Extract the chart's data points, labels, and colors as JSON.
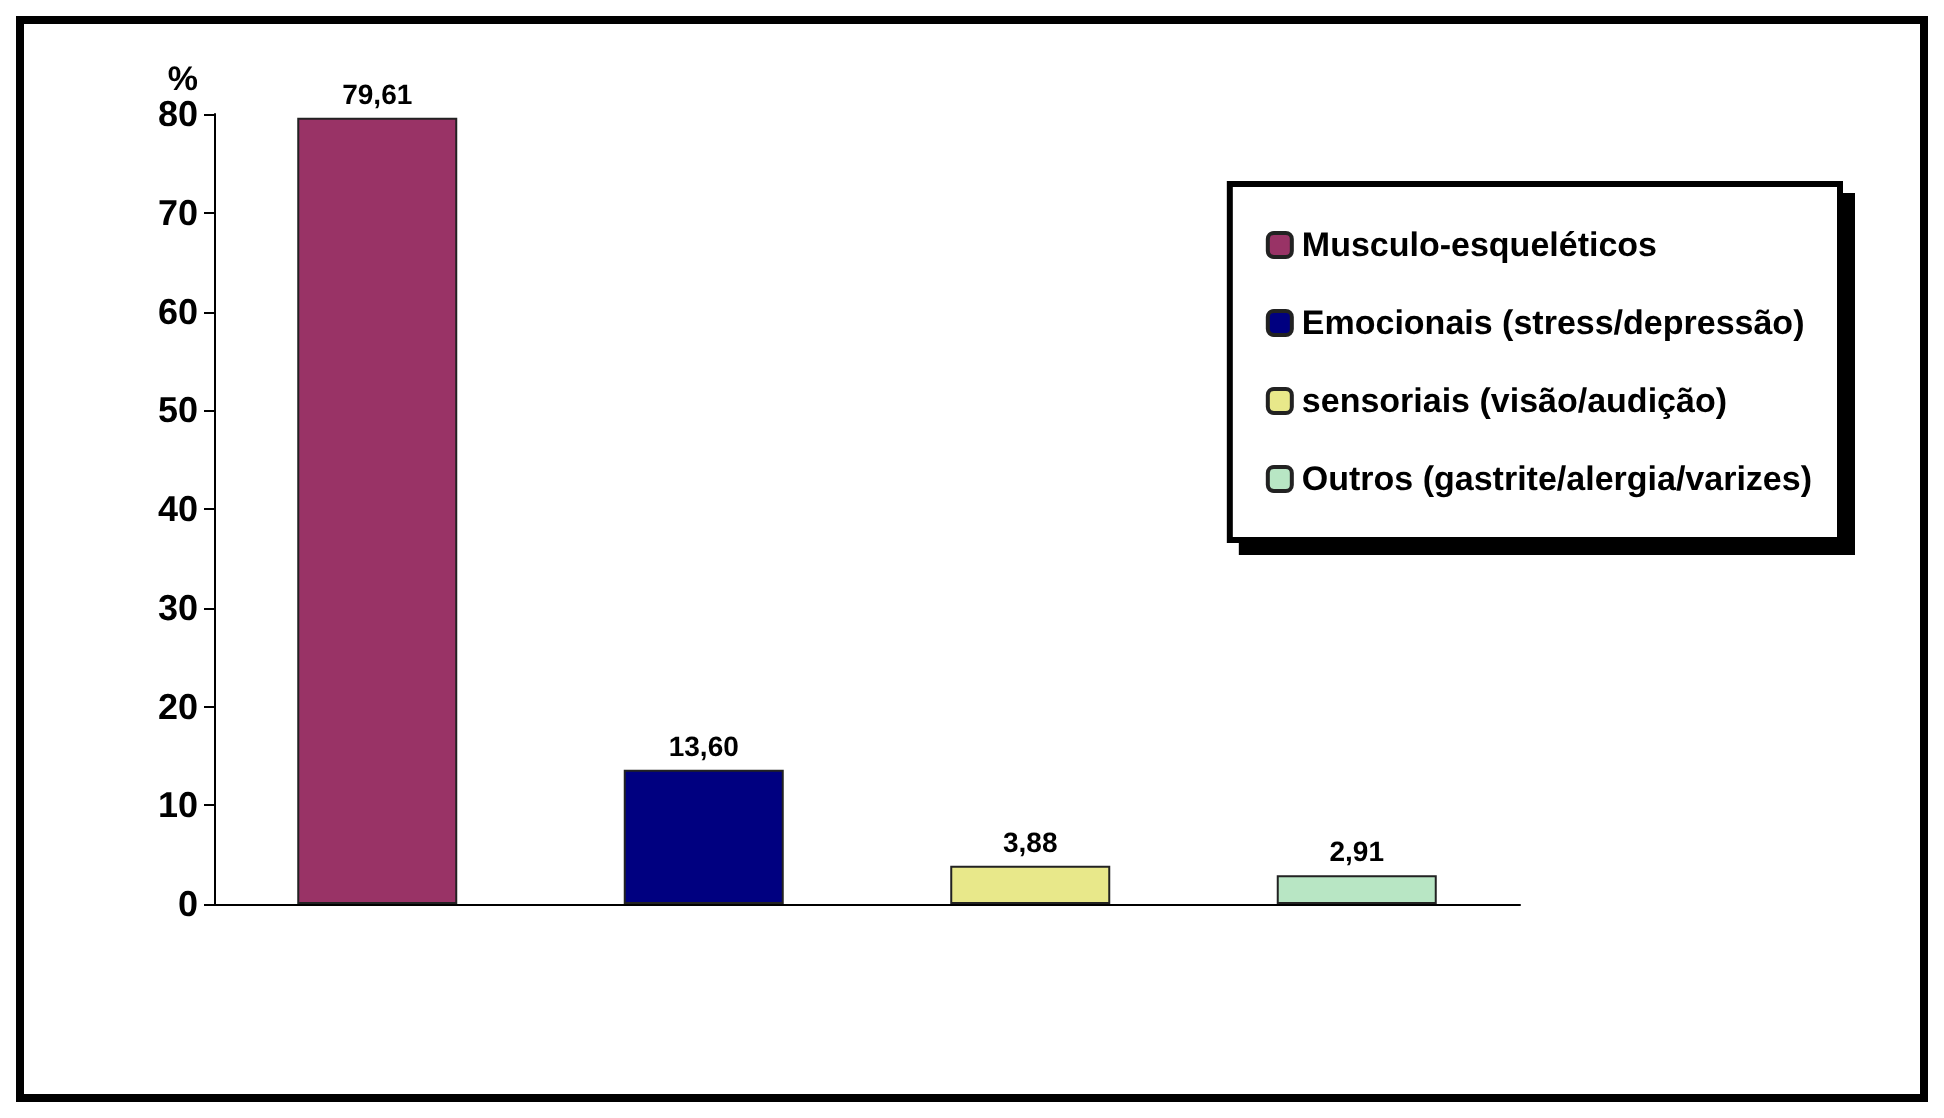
{
  "chart_data": {
    "type": "bar",
    "ylabel": "%",
    "categories": [
      null,
      null,
      null,
      null
    ],
    "series": [
      {
        "name": "Musculo-esqueléticos",
        "color": "#993366",
        "values": [
          79.61,
          null,
          null,
          null
        ],
        "value_labels": [
          "79,61",
          null,
          null,
          null
        ]
      },
      {
        "name": "Emocionais (stress/depressão)",
        "color": "#000080",
        "values": [
          null,
          13.6,
          null,
          null
        ],
        "value_labels": [
          null,
          "13,60",
          null,
          null
        ]
      },
      {
        "name": "sensoriais (visão/audição)",
        "color": "#e8e88a",
        "values": [
          null,
          null,
          3.88,
          null
        ],
        "value_labels": [
          null,
          null,
          "3,88",
          null
        ]
      },
      {
        "name": "Outros (gastrite/alergia/varizes)",
        "color": "#b8e6c4",
        "values": [
          null,
          null,
          null,
          2.91
        ],
        "value_labels": [
          null,
          null,
          null,
          "2,91"
        ]
      }
    ],
    "ylim": [
      0,
      80
    ],
    "yticks": [
      0,
      10,
      20,
      30,
      40,
      50,
      60,
      70,
      80
    ],
    "legend": "right"
  }
}
